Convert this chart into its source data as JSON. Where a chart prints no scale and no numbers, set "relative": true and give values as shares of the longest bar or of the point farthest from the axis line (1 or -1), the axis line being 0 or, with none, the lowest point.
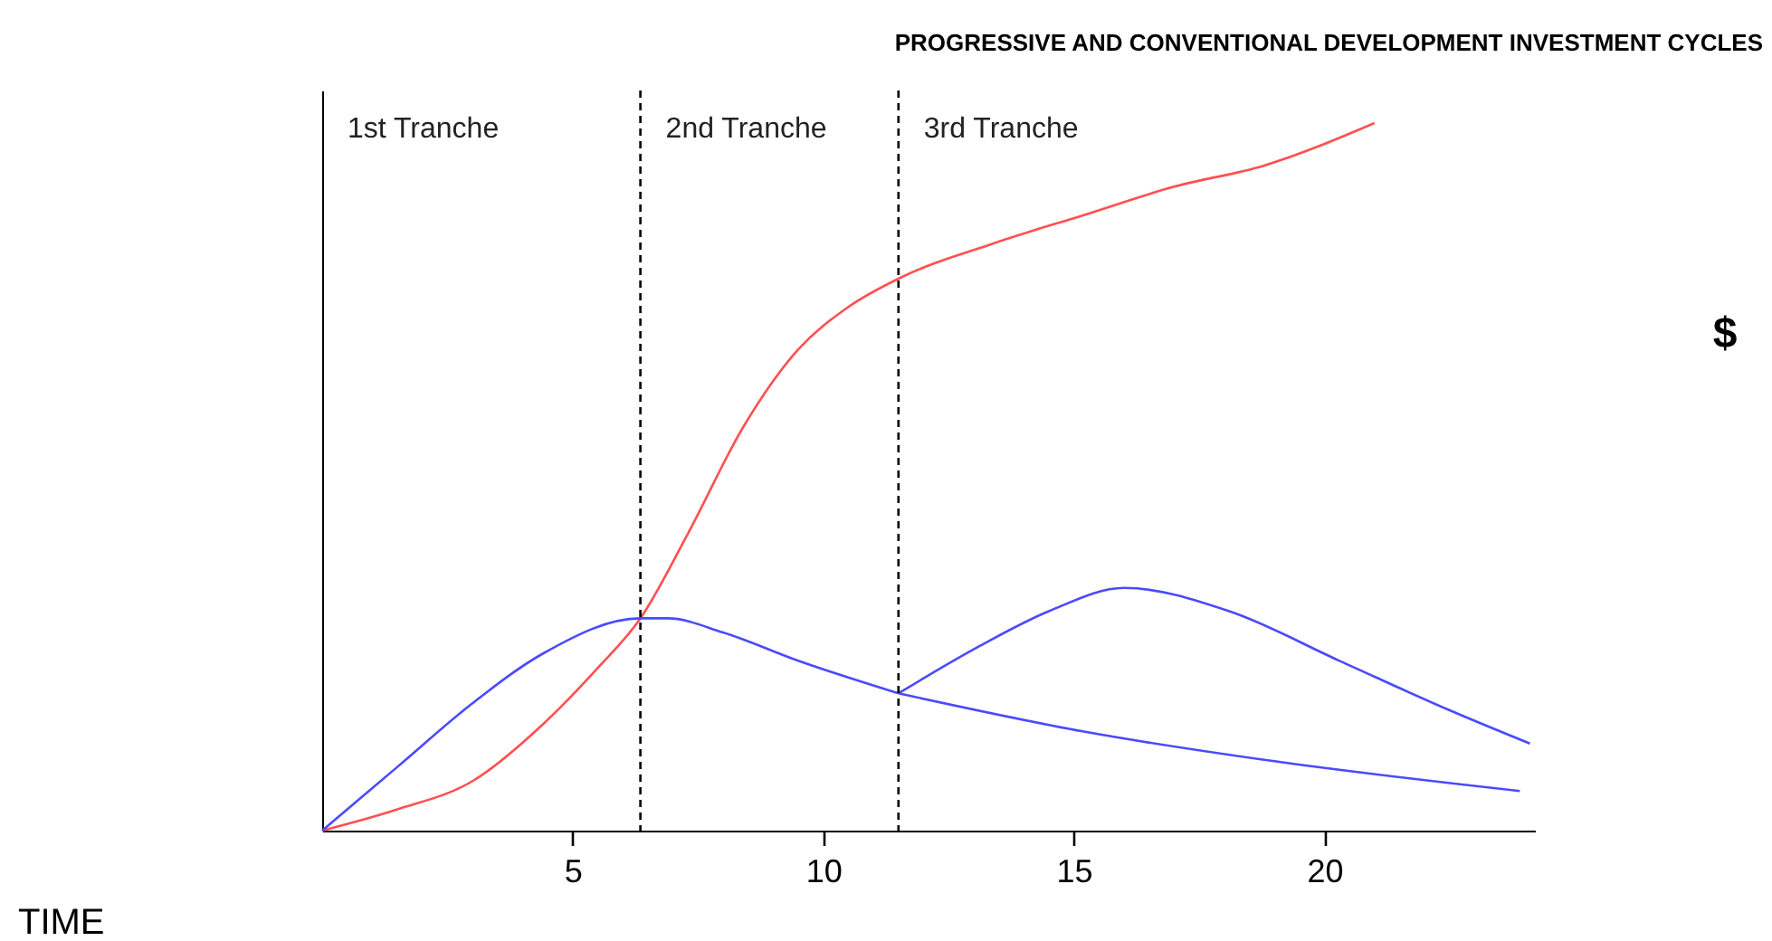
{
  "chart_data": {
    "type": "line",
    "title": "PROGRESSIVE AND CONVENTIONAL DEVELOPMENT INVESTMENT CYCLES",
    "ylabel": "$",
    "relative": true,
    "xlim": [
      0,
      24.2
    ],
    "xticks": [
      5,
      10,
      15,
      20
    ],
    "marker": "none",
    "line_style": "solid",
    "grid": false,
    "series": [
      {
        "color": "#ff5050",
        "x": [
          0,
          1.5,
          3.0,
          4.4,
          5.5,
          6.35,
          7.3,
          8.4,
          9.5,
          10.5,
          11.5,
          13.4,
          15.2,
          17.0,
          18.8,
          21.0
        ],
        "values": [
          0,
          0.03,
          0.07,
          0.15,
          0.23,
          0.3,
          0.42,
          0.57,
          0.68,
          0.74,
          0.78,
          0.83,
          0.87,
          0.91,
          0.94,
          1.0
        ]
      },
      {
        "color": "#4a4aff",
        "x": [
          0,
          1.5,
          3.0,
          4.4,
          6.35,
          6.9,
          8.0,
          9.5,
          11.5
        ],
        "values": [
          0,
          0.09,
          0.18,
          0.25,
          0.3,
          0.3,
          0.28,
          0.24,
          0.194
        ]
      },
      {
        "color": "#4a4aff",
        "x": [
          11.5,
          15.2,
          18.8,
          23.9
        ],
        "values": [
          0.194,
          0.14,
          0.1,
          0.056
        ]
      },
      {
        "color": "#4a4aff",
        "x": [
          11.5,
          13.1,
          14.5,
          16.0,
          18.1,
          20.3,
          22.5,
          24.1
        ],
        "values": [
          0.194,
          0.26,
          0.31,
          0.343,
          0.31,
          0.24,
          0.17,
          0.123
        ]
      }
    ],
    "ref_lines": [
      {
        "axis": "x",
        "value": 6.35,
        "line_style": "dashed",
        "color": "#000000"
      },
      {
        "axis": "x",
        "value": 11.5,
        "line_style": "dashed",
        "color": "#000000"
      }
    ],
    "annotations": [
      "1st Tranche",
      "2nd Tranche",
      "3rd Tranche",
      "TIME"
    ]
  }
}
